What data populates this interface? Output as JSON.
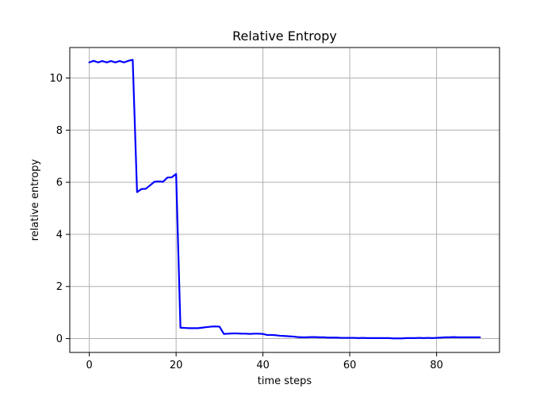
{
  "chart_data": {
    "type": "line",
    "title": "Relative Entropy",
    "xlabel": "time steps",
    "ylabel": "relative entropy",
    "xlim": [
      -4.5,
      94.5
    ],
    "ylim": [
      -0.53,
      11.17
    ],
    "xticks": [
      0,
      20,
      40,
      60,
      80
    ],
    "yticks": [
      0,
      2,
      4,
      6,
      8,
      10
    ],
    "grid": true,
    "series": [
      {
        "color": "#0000ff",
        "x": [
          0,
          1,
          2,
          3,
          4,
          5,
          6,
          7,
          8,
          9,
          10,
          11,
          12,
          13,
          14,
          15,
          16,
          17,
          18,
          19,
          20,
          21,
          22,
          23,
          24,
          25,
          26,
          27,
          28,
          29,
          30,
          31,
          32,
          33,
          34,
          35,
          36,
          37,
          38,
          39,
          40,
          41,
          42,
          43,
          44,
          45,
          46,
          47,
          48,
          49,
          50,
          51,
          52,
          53,
          54,
          55,
          56,
          57,
          58,
          59,
          60,
          61,
          62,
          63,
          64,
          65,
          66,
          67,
          68,
          69,
          70,
          71,
          72,
          73,
          74,
          75,
          76,
          77,
          78,
          79,
          80,
          81,
          82,
          83,
          84,
          85,
          86,
          87,
          88,
          89,
          90
        ],
        "y": [
          10.6,
          10.66,
          10.6,
          10.65,
          10.6,
          10.65,
          10.6,
          10.65,
          10.6,
          10.66,
          10.7,
          5.62,
          5.74,
          5.75,
          5.88,
          6.02,
          6.03,
          6.02,
          6.18,
          6.19,
          6.32,
          0.42,
          0.41,
          0.4,
          0.4,
          0.4,
          0.42,
          0.44,
          0.46,
          0.47,
          0.46,
          0.18,
          0.19,
          0.2,
          0.2,
          0.19,
          0.19,
          0.18,
          0.19,
          0.19,
          0.18,
          0.14,
          0.14,
          0.13,
          0.11,
          0.1,
          0.09,
          0.08,
          0.06,
          0.05,
          0.05,
          0.06,
          0.06,
          0.05,
          0.05,
          0.04,
          0.04,
          0.04,
          0.03,
          0.03,
          0.03,
          0.03,
          0.02,
          0.03,
          0.02,
          0.02,
          0.02,
          0.02,
          0.02,
          0.02,
          0.01,
          0.01,
          0.01,
          0.02,
          0.02,
          0.02,
          0.03,
          0.02,
          0.03,
          0.02,
          0.03,
          0.04,
          0.05,
          0.05,
          0.06,
          0.05,
          0.05,
          0.05,
          0.05,
          0.05,
          0.05
        ]
      }
    ]
  }
}
